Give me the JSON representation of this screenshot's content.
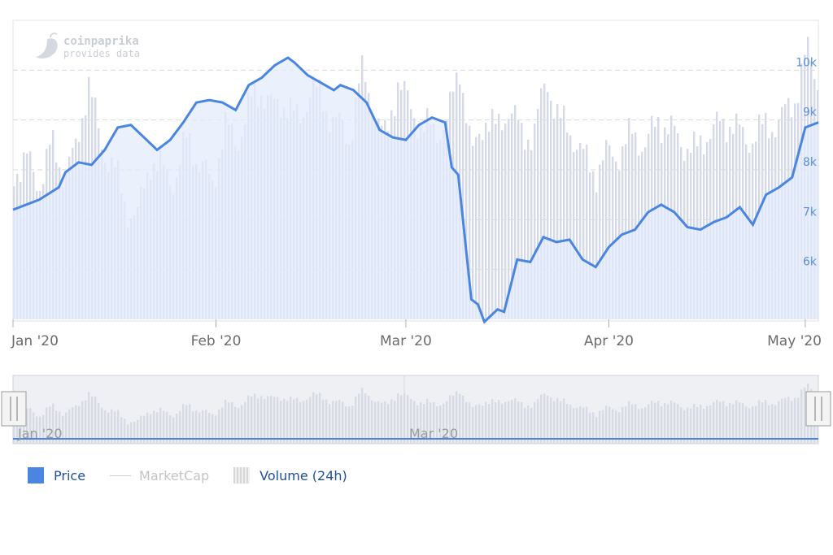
{
  "watermark": {
    "brand": "coinpaprika",
    "tagline": "provides data"
  },
  "colors": {
    "price": "#4a86e0",
    "price_fill": "#e3ebfb",
    "volume": "#dcdcdc",
    "volume_bars": "#d4dbe6",
    "grid": "#d9d9d9",
    "axis_text": "#6b6b6b",
    "price_axis_text": "#5b8fd6"
  },
  "chart_data": {
    "type": "line",
    "x_ticks": [
      "Jan '20",
      "Feb '20",
      "Mar '20",
      "Apr '20",
      "May '20"
    ],
    "y_ticks": [
      "6k",
      "7k",
      "8k",
      "9k",
      "10k"
    ],
    "y_tick_values": [
      6000,
      7000,
      8000,
      9000,
      10000
    ],
    "ylim": [
      5000,
      11000
    ],
    "x": [
      "2020-01-01",
      "2020-01-05",
      "2020-01-08",
      "2020-01-09",
      "2020-01-11",
      "2020-01-13",
      "2020-01-15",
      "2020-01-17",
      "2020-01-19",
      "2020-01-21",
      "2020-01-23",
      "2020-01-25",
      "2020-01-27",
      "2020-01-29",
      "2020-01-31",
      "2020-02-02",
      "2020-02-04",
      "2020-02-06",
      "2020-02-08",
      "2020-02-10",
      "2020-02-12",
      "2020-02-13",
      "2020-02-15",
      "2020-02-17",
      "2020-02-19",
      "2020-02-20",
      "2020-02-22",
      "2020-02-24",
      "2020-02-26",
      "2020-02-28",
      "2020-03-01",
      "2020-03-03",
      "2020-03-05",
      "2020-03-07",
      "2020-03-08",
      "2020-03-09",
      "2020-03-11",
      "2020-03-12",
      "2020-03-13",
      "2020-03-15",
      "2020-03-16",
      "2020-03-18",
      "2020-03-20",
      "2020-03-22",
      "2020-03-24",
      "2020-03-26",
      "2020-03-28",
      "2020-03-30",
      "2020-04-01",
      "2020-04-03",
      "2020-04-05",
      "2020-04-07",
      "2020-04-09",
      "2020-04-11",
      "2020-04-13",
      "2020-04-15",
      "2020-04-17",
      "2020-04-19",
      "2020-04-21",
      "2020-04-23",
      "2020-04-25",
      "2020-04-27",
      "2020-04-29",
      "2020-04-30",
      "2020-05-01",
      "2020-05-03"
    ],
    "series": [
      {
        "name": "Price",
        "values": [
          7200,
          7400,
          7650,
          7950,
          8150,
          8100,
          8400,
          8850,
          8900,
          8650,
          8400,
          8600,
          8950,
          9350,
          9400,
          9350,
          9200,
          9700,
          9850,
          10100,
          10250,
          10150,
          9900,
          9750,
          9600,
          9700,
          9600,
          9350,
          8800,
          8650,
          8600,
          8900,
          9050,
          8950,
          8050,
          7900,
          5400,
          5300,
          4950,
          5200,
          5150,
          6200,
          6150,
          6650,
          6550,
          6600,
          6200,
          6050,
          6450,
          6700,
          6800,
          7150,
          7300,
          7150,
          6850,
          6800,
          6950,
          7050,
          7250,
          6900,
          7500,
          7650,
          7850,
          8350,
          8850,
          8950
        ]
      }
    ],
    "volume_note": "relative 24h volume, same dates as x",
    "volume": [
      0.55,
      0.6,
      0.5,
      0.65,
      0.55,
      0.62,
      0.9,
      0.65,
      0.58,
      0.42,
      0.38,
      0.6,
      0.55,
      0.52,
      0.68,
      0.58,
      0.5,
      0.72,
      0.66,
      0.8,
      0.86,
      0.78,
      0.82,
      0.72,
      0.88,
      0.8,
      0.74,
      0.66,
      0.92,
      0.8,
      0.66,
      0.9,
      0.78,
      0.72,
      0.7,
      0.74,
      0.95,
      0.6,
      0.76,
      0.7,
      0.8,
      0.68,
      0.7,
      0.9,
      0.74,
      0.7,
      0.6,
      0.55,
      0.62,
      0.62,
      0.7,
      0.64,
      0.75,
      0.7,
      0.66,
      0.62,
      0.7,
      0.72,
      0.74,
      0.66,
      0.7,
      0.72,
      0.75,
      0.82,
      1.0,
      0.88
    ]
  },
  "navigator": {
    "labels": [
      "Jan '20",
      "Mar '20"
    ]
  },
  "legend": {
    "price": "Price",
    "marketcap": "MarketCap",
    "volume": "Volume (24h)"
  }
}
